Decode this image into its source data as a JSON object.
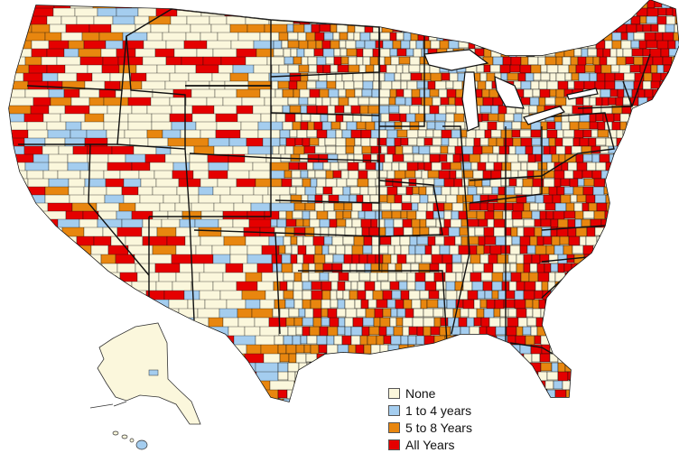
{
  "legend": {
    "items": [
      {
        "label": "None",
        "color": "#fbf7dc"
      },
      {
        "label": "1 to 4 years",
        "color": "#a4cdef"
      },
      {
        "label": "5 to 8 Years",
        "color": "#e8860f"
      },
      {
        "label": "All Years",
        "color": "#e50000"
      }
    ]
  },
  "colors": {
    "none": "#fbf7dc",
    "one_to_four": "#a4cdef",
    "five_to_eight": "#e8860f",
    "all_years": "#e50000",
    "borders": "#111111"
  }
}
